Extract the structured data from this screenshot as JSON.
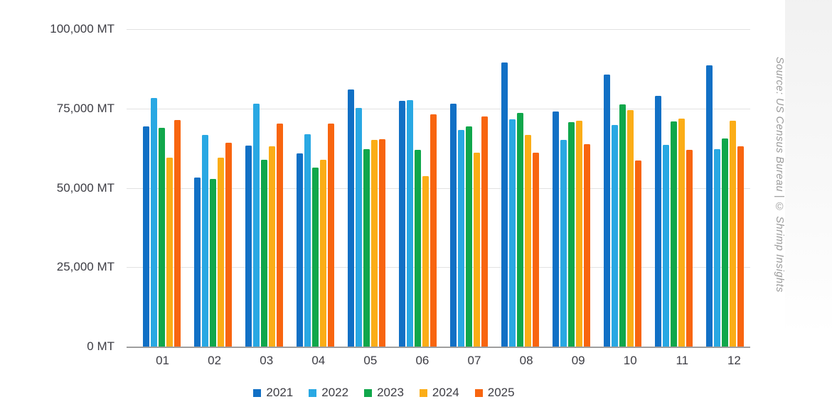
{
  "chart_data": {
    "type": "bar",
    "title": "",
    "unit": "MT",
    "categories": [
      "01",
      "02",
      "03",
      "04",
      "05",
      "06",
      "07",
      "08",
      "09",
      "10",
      "11",
      "12"
    ],
    "series": [
      {
        "name": "2021",
        "color": "#1170C5",
        "values": [
          69400,
          53200,
          63400,
          60900,
          80900,
          77300,
          76500,
          89500,
          74100,
          85600,
          78900,
          88500
        ]
      },
      {
        "name": "2022",
        "color": "#29A8E3",
        "values": [
          78400,
          66600,
          76600,
          66900,
          75100,
          77700,
          68200,
          71600,
          65100,
          69900,
          63600,
          62100
        ]
      },
      {
        "name": "2023",
        "color": "#10A74B",
        "values": [
          68900,
          52700,
          58900,
          56300,
          62300,
          61900,
          69400,
          73600,
          70600,
          76300,
          71000,
          65500
        ]
      },
      {
        "name": "2024",
        "color": "#FBAD17",
        "values": [
          59600,
          59600,
          63200,
          58800,
          65100,
          53700,
          61100,
          66600,
          71200,
          74600,
          71800,
          71100
        ]
      },
      {
        "name": "2025",
        "color": "#F8650F",
        "values": [
          71400,
          64200,
          70300,
          70300,
          65400,
          73100,
          72500,
          61100,
          63800,
          58700,
          61900,
          63000
        ]
      }
    ],
    "ylim": [
      0,
      100000
    ],
    "yticks": [
      {
        "value": 100000,
        "label": "100,000 MT"
      },
      {
        "value": 75000,
        "label": "75,000 MT"
      },
      {
        "value": 50000,
        "label": "50,000 MT"
      },
      {
        "value": 25000,
        "label": "25,000 MT"
      },
      {
        "value": 0,
        "label": "0 MT"
      }
    ],
    "grid": true,
    "legend_position": "bottom"
  },
  "source_note": "Source: US Census Bureau | © Shrimp Insights",
  "colors": {
    "grid": "#e2e2e2",
    "axis": "#9e9e9e",
    "tick_text": "#3d3d44",
    "source_text": "#9a9a9a",
    "background": "#ffffff"
  }
}
